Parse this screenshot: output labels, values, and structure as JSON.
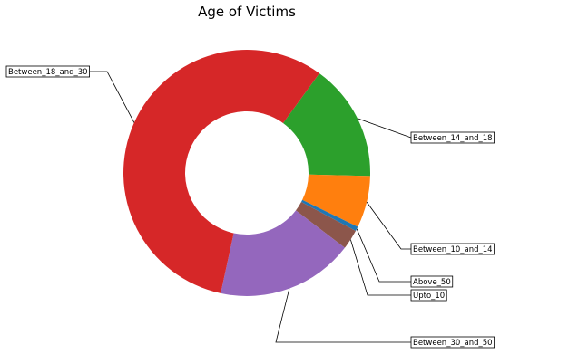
{
  "chart_data": {
    "type": "pie",
    "style": "donut",
    "title": "Age of Victims",
    "start_angle_deg": 54,
    "direction": "clockwise",
    "slices": [
      {
        "label": "Between_14_and_18",
        "value": 15.4,
        "color": "#2ca02c"
      },
      {
        "label": "Between_10_and_14",
        "value": 6.8,
        "color": "#ff7f0e"
      },
      {
        "label": "Above_50",
        "value": 0.6,
        "color": "#1f77b4"
      },
      {
        "label": "Upto_10",
        "value": 2.6,
        "color": "#8c564b"
      },
      {
        "label": "Between_30_and_50",
        "value": 18.0,
        "color": "#9467bd"
      },
      {
        "label": "Between_18_and_30",
        "value": 56.6,
        "color": "#d62728"
      }
    ]
  }
}
